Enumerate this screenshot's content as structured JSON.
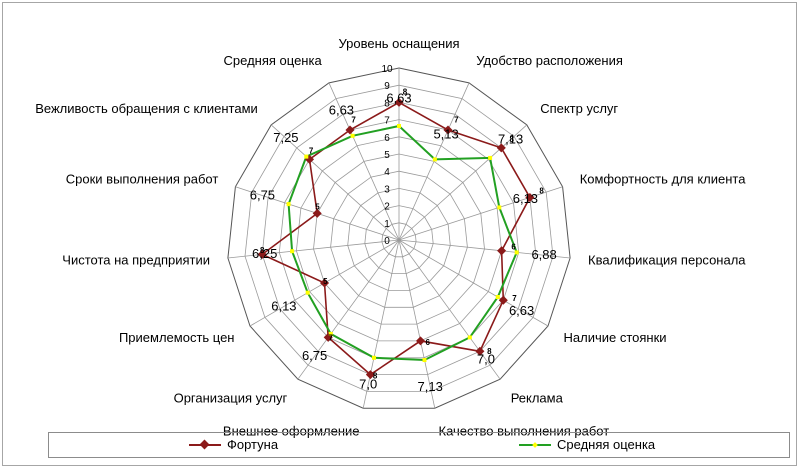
{
  "chart_data": {
    "type": "radar",
    "categories": [
      "Уровень оснащения",
      "Удобство расположения",
      "Спектр услуг",
      "Комфортность для клиента",
      "Квалификация персонала",
      "Наличие стоянки",
      "Реклама",
      "Качество выполнения работ",
      "Внешнее оформление",
      "Организация услуг",
      "Приемлемость цен",
      "Чистота на предприятии",
      "Сроки выполнения работ",
      "Вежливость обращения с клиентами",
      "Средняя оценка"
    ],
    "series": [
      {
        "name": "Фортуна",
        "color": "#8b1a1a",
        "values": [
          8,
          7,
          8,
          8,
          6,
          7,
          8,
          6,
          8,
          7,
          5,
          8,
          5,
          7,
          7
        ],
        "labels": [
          "8",
          "7",
          "8",
          "8",
          "6",
          "7",
          "8",
          "6",
          "8",
          "7",
          "5",
          "8",
          "5",
          "7",
          "7"
        ]
      },
      {
        "name": "Средняя оценка",
        "color": "#22a022",
        "values": [
          6.63,
          5.13,
          7.13,
          6.13,
          6.88,
          6.63,
          7.0,
          7.13,
          7.0,
          6.75,
          6.13,
          6.25,
          6.75,
          7.25,
          6.63
        ],
        "labels": [
          "6,63",
          "5,13",
          "7,13",
          "6,13",
          "6,88",
          "6,63",
          "7,0",
          "7,13",
          "7,0",
          "6,75",
          "6,13",
          "6,25",
          "6,75",
          "7,25",
          "6,63"
        ]
      }
    ],
    "rlim": [
      0,
      10
    ],
    "ticks": [
      "0",
      "1",
      "2",
      "3",
      "4",
      "5",
      "6",
      "7",
      "8",
      "9",
      "10"
    ],
    "grid": true,
    "legend_position": "bottom"
  }
}
